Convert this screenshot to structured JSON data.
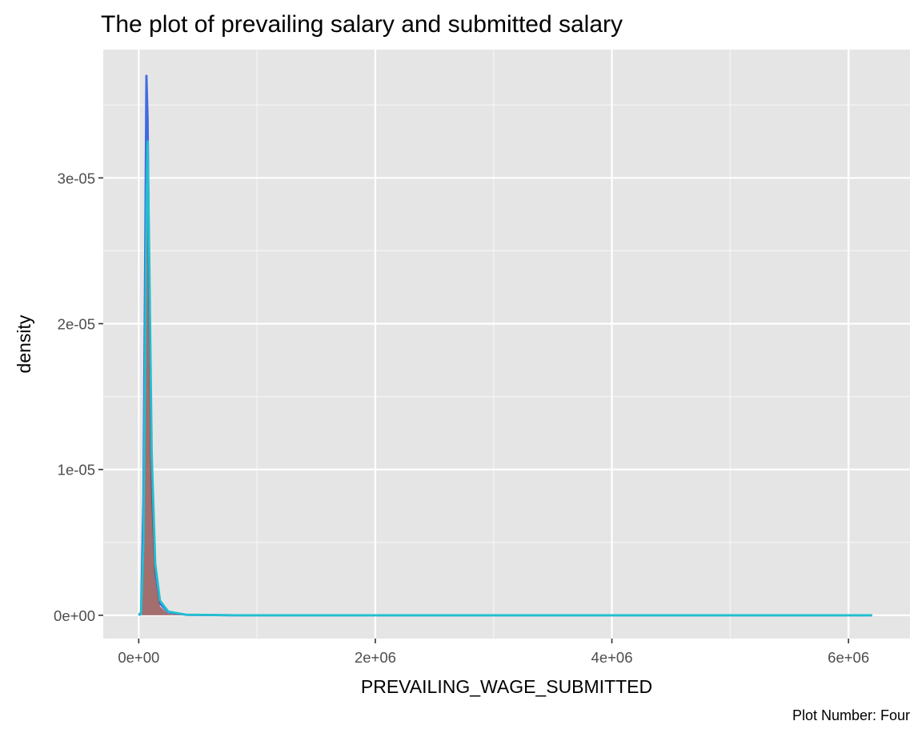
{
  "chart_data": {
    "type": "area",
    "title": "The plot of prevailing salary and submitted salary",
    "xlabel": "PREVAILING_WAGE_SUBMITTED",
    "ylabel": "density",
    "caption": "Plot Number: Four",
    "xlim": [
      -300000,
      6520000
    ],
    "ylim": [
      -1.6e-06,
      3.88e-05
    ],
    "x_ticks": [
      0,
      2000000,
      4000000,
      6000000
    ],
    "x_tick_labels": [
      "0e+00",
      "2e+06",
      "4e+06",
      "6e+06"
    ],
    "y_ticks": [
      0,
      1e-05,
      2e-05,
      3e-05
    ],
    "y_tick_labels": [
      "0e+00",
      "1e-05",
      "2e-05",
      "3e-05"
    ],
    "grid": true,
    "legend": "none",
    "series": [
      {
        "color": "#4169e1",
        "fill": "none",
        "x": [
          0,
          20000,
          40000,
          55000,
          65000,
          75000,
          90000,
          110000,
          140000,
          180000,
          250000,
          400000,
          800000,
          6200000
        ],
        "y": [
          0,
          2e-07,
          8e-06,
          2.5e-05,
          3.7e-05,
          3.4e-05,
          2.2e-05,
          9e-06,
          3e-06,
          8e-07,
          2e-07,
          3e-08,
          0,
          0
        ]
      },
      {
        "color": "#8b4545",
        "fill": "#8b4545",
        "x": [
          0,
          20000,
          40000,
          55000,
          65000,
          75000,
          90000,
          110000,
          140000,
          180000,
          250000,
          400000
        ],
        "y": [
          0,
          2e-07,
          6.5e-06,
          2e-05,
          3e-05,
          3.1e-05,
          2.1e-05,
          9e-06,
          2.5e-06,
          6e-07,
          1e-07,
          0
        ]
      },
      {
        "color": "#20c0d0",
        "fill": "none",
        "x": [
          0,
          20000,
          40000,
          55000,
          65000,
          75000,
          90000,
          110000,
          140000,
          180000,
          250000,
          400000,
          800000,
          6200000
        ],
        "y": [
          0,
          1e-07,
          5e-06,
          1.8e-05,
          2.8e-05,
          3.25e-05,
          2.4e-05,
          1.1e-05,
          3.5e-06,
          1e-06,
          2.5e-07,
          4e-08,
          0,
          0
        ]
      }
    ]
  }
}
